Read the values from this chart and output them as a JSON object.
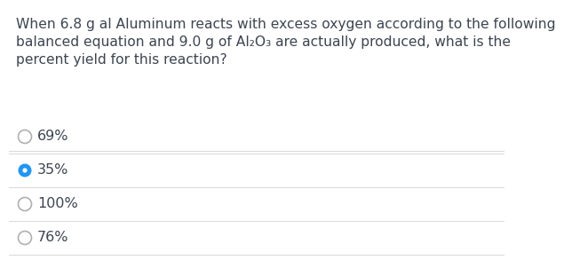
{
  "question_line1": "When 6.8 g al Aluminum reacts with excess oxygen according to the following",
  "question_line2": "balanced equation and 9.0 g of Al",
  "question_line2_sub1": "2",
  "question_line2_mid": "O",
  "question_line2_sub2": "3",
  "question_line2_end": " are actually produced, what is the",
  "question_line3": "percent yield for this reaction?",
  "options": [
    "69%",
    "35%",
    "100%",
    "76%"
  ],
  "selected_index": 1,
  "bg_color": "#ffffff",
  "text_color": "#3d4550",
  "divider_color": "#d8d8d8",
  "radio_empty_edge": "#b0b0b0",
  "radio_selected_color": "#2196F3",
  "radio_selected_fill": "#2196F3",
  "font_size": 11.2,
  "option_font_size": 11.5
}
